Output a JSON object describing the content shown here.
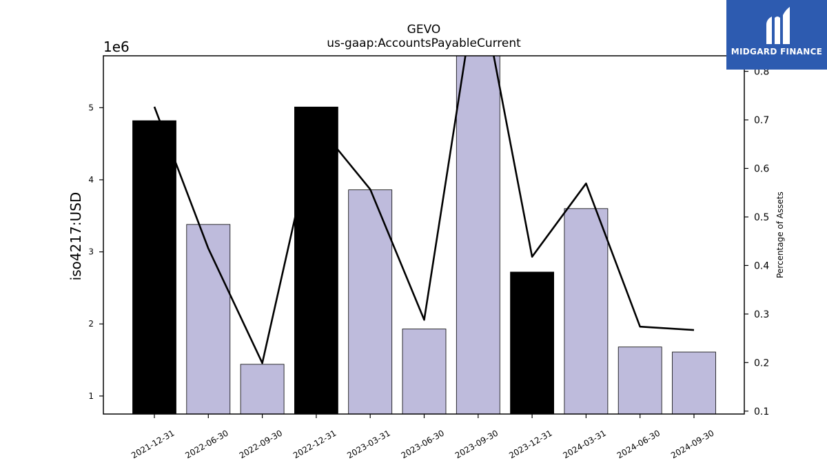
{
  "chart_data": {
    "type": "bar+line",
    "title": "GEVO",
    "subtitle": "us-gaap:AccountsPayableCurrent",
    "ylabel": "iso4217:USD",
    "y2label": "Percentage of Assets",
    "offset_label": "1e6",
    "categories": [
      "2021-12-31",
      "2022-06-30",
      "2022-09-30",
      "2022-12-31",
      "2023-03-31",
      "2023-06-30",
      "2023-09-30",
      "2023-12-31",
      "2024-03-31",
      "2024-06-30",
      "2024-09-30"
    ],
    "values": [
      4.82,
      3.38,
      1.44,
      5.01,
      3.86,
      1.93,
      5.8,
      2.72,
      3.6,
      1.68,
      1.61
    ],
    "annual": [
      true,
      false,
      false,
      true,
      false,
      false,
      false,
      true,
      false,
      false,
      false
    ],
    "pct_of_assets": [
      0.727,
      0.435,
      0.199,
      0.693,
      0.557,
      0.288,
      1.0,
      0.418,
      0.569,
      0.274,
      0.267
    ],
    "ylim": [
      0.75,
      5.72
    ],
    "y2lim": [
      0.094,
      0.832
    ],
    "yticks": [
      1,
      2,
      3,
      4,
      5
    ],
    "y2ticks": [
      0.1,
      0.2,
      0.3,
      0.4,
      0.5,
      0.6,
      0.7,
      0.8
    ],
    "colors": {
      "annual": "#000000",
      "quarterly": "#bebbdc",
      "line": "#000000"
    }
  },
  "logo": {
    "text": "MIDGARD FINANCE",
    "bg": "#2d5bb0"
  }
}
